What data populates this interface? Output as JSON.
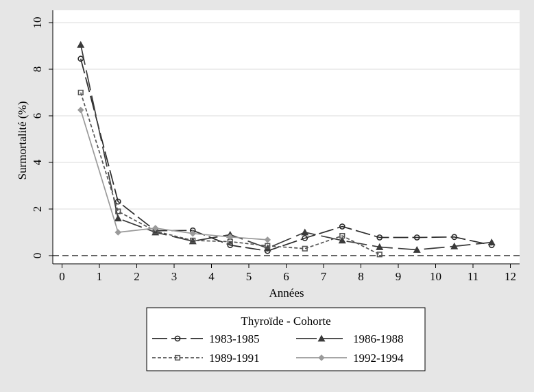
{
  "chart_data": {
    "type": "line",
    "title": "",
    "xlabel": "Années",
    "ylabel": "Surmortalité (%)",
    "xlim": [
      0,
      12
    ],
    "ylim": [
      0,
      10
    ],
    "x_ticks": [
      0,
      1,
      2,
      3,
      4,
      5,
      6,
      7,
      8,
      9,
      10,
      11,
      12
    ],
    "y_ticks": [
      0,
      2,
      4,
      6,
      8,
      10
    ],
    "grid": true,
    "reference_line_y": 0,
    "legend": {
      "title": "Thyroïde - Cohorte",
      "placement": "bottom"
    },
    "series": [
      {
        "name": "1983-1985",
        "marker": "circle",
        "dash": "long",
        "color": "#2b2b2b",
        "x": [
          0.5,
          1.5,
          2.5,
          3.5,
          4.5,
          5.5,
          6.5,
          7.5,
          8.5,
          9.5,
          10.5,
          11.5
        ],
        "values": [
          8.45,
          2.32,
          1.07,
          1.08,
          0.45,
          0.2,
          0.75,
          1.25,
          0.78,
          0.78,
          0.8,
          0.45
        ]
      },
      {
        "name": "1986-1988",
        "marker": "triangle",
        "dash": "longlong",
        "color": "#3a3a3a",
        "x": [
          0.5,
          1.5,
          2.5,
          3.5,
          4.5,
          5.5,
          6.5,
          7.5,
          8.5,
          9.5,
          10.5,
          11.5
        ],
        "values": [
          9.05,
          1.6,
          1.0,
          0.62,
          0.9,
          0.32,
          1.0,
          0.65,
          0.37,
          0.25,
          0.4,
          0.57
        ]
      },
      {
        "name": "1989-1991",
        "marker": "square",
        "dash": "short",
        "color": "#555555",
        "x": [
          0.5,
          1.5,
          2.5,
          3.5,
          4.5,
          5.5,
          6.5,
          7.5,
          8.5
        ],
        "values": [
          7.0,
          1.9,
          1.05,
          0.65,
          0.6,
          0.42,
          0.3,
          0.85,
          0.05
        ]
      },
      {
        "name": "1992-1994",
        "marker": "diamond",
        "dash": "solid",
        "color": "#9a9a9a",
        "x": [
          0.5,
          1.5,
          2.5,
          3.5,
          4.5,
          5.5
        ],
        "values": [
          6.25,
          1.0,
          1.18,
          0.95,
          0.8,
          0.68
        ]
      }
    ]
  }
}
